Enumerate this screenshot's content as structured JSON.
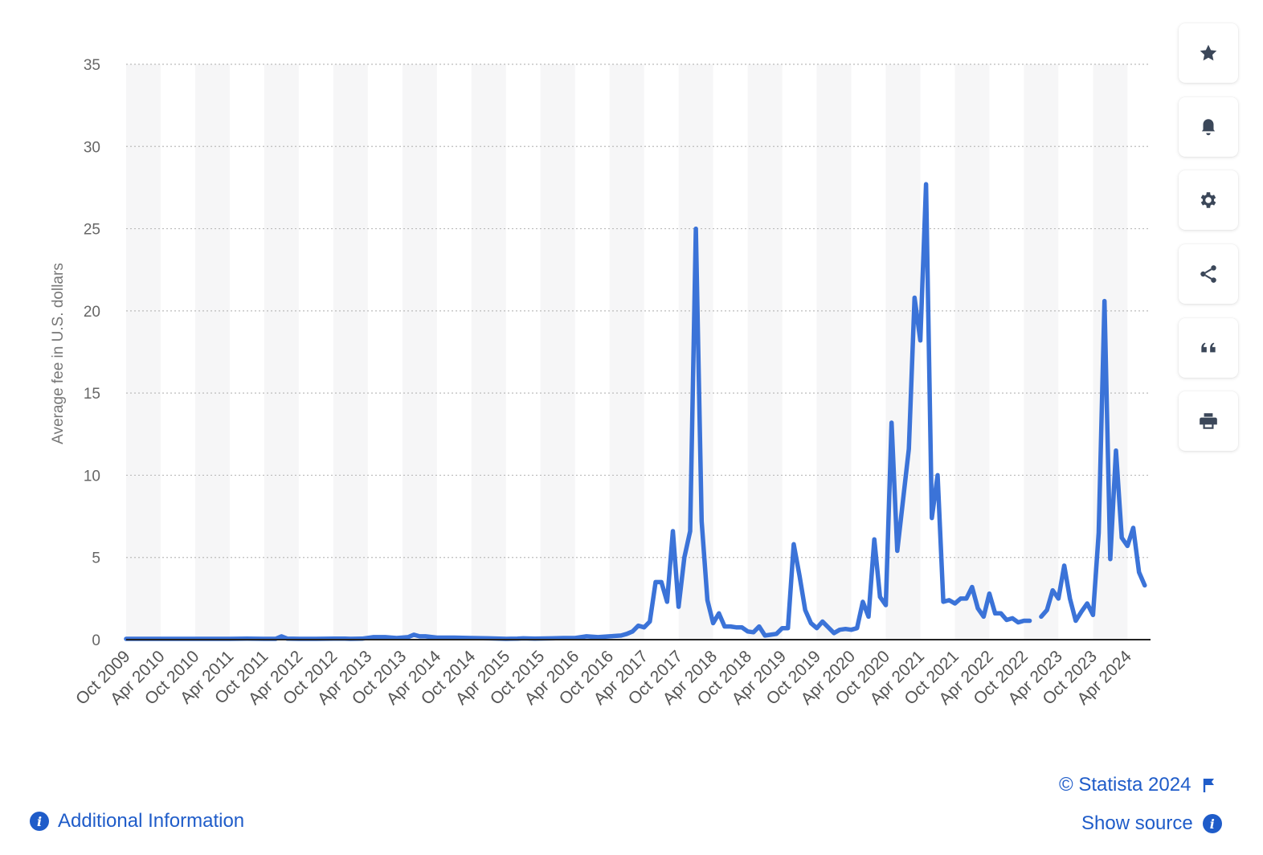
{
  "chart_data": {
    "type": "line",
    "ylabel": "Average fee in U.S. dollars",
    "ylim": [
      0,
      35
    ],
    "yticks": [
      0,
      5,
      10,
      15,
      20,
      25,
      30,
      35
    ],
    "xtick_labels": [
      "Oct 2009",
      "Apr 2010",
      "Oct 2010",
      "Apr 2011",
      "Oct 2011",
      "Apr 2012",
      "Oct 2012",
      "Apr 2013",
      "Oct 2013",
      "Apr 2014",
      "Oct 2014",
      "Apr 2015",
      "Oct 2015",
      "Apr 2016",
      "Oct 2016",
      "Apr 2017",
      "Oct 2017",
      "Apr 2018",
      "Oct 2018",
      "Apr 2019",
      "Oct 2019",
      "Apr 2020",
      "Oct 2020",
      "Apr 2021",
      "Oct 2021",
      "Apr 2022",
      "Oct 2022",
      "Apr 2023",
      "Oct 2023",
      "Apr 2024"
    ],
    "x_start": "2009-10",
    "x_end": "2024-08",
    "series": [
      {
        "color": "#3b73d8",
        "points": [
          [
            "2009-10",
            0.05
          ],
          [
            "2010-01",
            0.05
          ],
          [
            "2010-04",
            0.05
          ],
          [
            "2010-07",
            0.05
          ],
          [
            "2010-10",
            0.05
          ],
          [
            "2011-01",
            0.05
          ],
          [
            "2011-04",
            0.05
          ],
          [
            "2011-07",
            0.06
          ],
          [
            "2011-10",
            0.05
          ],
          [
            "2011-12",
            0.05
          ],
          [
            "2012-01",
            0.2
          ],
          [
            "2012-02",
            0.06
          ],
          [
            "2012-04",
            0.05
          ],
          [
            "2012-07",
            0.05
          ],
          [
            "2012-10",
            0.06
          ],
          [
            "2012-12",
            0.06
          ],
          [
            "2013-01",
            0.05
          ],
          [
            "2013-03",
            0.06
          ],
          [
            "2013-05",
            0.15
          ],
          [
            "2013-07",
            0.15
          ],
          [
            "2013-09",
            0.1
          ],
          [
            "2013-11",
            0.15
          ],
          [
            "2013-12",
            0.3
          ],
          [
            "2014-01",
            0.2
          ],
          [
            "2014-02",
            0.2
          ],
          [
            "2014-04",
            0.12
          ],
          [
            "2014-07",
            0.12
          ],
          [
            "2014-10",
            0.1
          ],
          [
            "2015-01",
            0.08
          ],
          [
            "2015-04",
            0.05
          ],
          [
            "2015-06",
            0.06
          ],
          [
            "2015-07",
            0.08
          ],
          [
            "2015-09",
            0.06
          ],
          [
            "2015-12",
            0.08
          ],
          [
            "2016-02",
            0.1
          ],
          [
            "2016-04",
            0.1
          ],
          [
            "2016-06",
            0.2
          ],
          [
            "2016-08",
            0.15
          ],
          [
            "2016-10",
            0.2
          ],
          [
            "2016-12",
            0.25
          ],
          [
            "2017-01",
            0.35
          ],
          [
            "2017-02",
            0.5
          ],
          [
            "2017-03",
            0.85
          ],
          [
            "2017-04",
            0.75
          ],
          [
            "2017-05",
            1.1
          ],
          [
            "2017-06",
            3.5
          ],
          [
            "2017-07",
            3.5
          ],
          [
            "2017-08",
            2.3
          ],
          [
            "2017-09",
            6.6
          ],
          [
            "2017-10",
            2.0
          ],
          [
            "2017-11",
            5.0
          ],
          [
            "2017-12",
            6.6
          ],
          [
            "2018-01",
            25.0
          ],
          [
            "2018-02",
            7.2
          ],
          [
            "2018-03",
            2.4
          ],
          [
            "2018-04",
            1.0
          ],
          [
            "2018-05",
            1.6
          ],
          [
            "2018-06",
            0.8
          ],
          [
            "2018-07",
            0.8
          ],
          [
            "2018-08",
            0.75
          ],
          [
            "2018-09",
            0.75
          ],
          [
            "2018-10",
            0.5
          ],
          [
            "2018-11",
            0.45
          ],
          [
            "2018-12",
            0.8
          ],
          [
            "2019-01",
            0.25
          ],
          [
            "2019-02",
            0.3
          ],
          [
            "2019-03",
            0.35
          ],
          [
            "2019-04",
            0.7
          ],
          [
            "2019-05",
            0.7
          ],
          [
            "2019-06",
            5.8
          ],
          [
            "2019-07",
            3.9
          ],
          [
            "2019-08",
            1.8
          ],
          [
            "2019-09",
            1.0
          ],
          [
            "2019-10",
            0.7
          ],
          [
            "2019-11",
            1.1
          ],
          [
            "2019-12",
            0.75
          ],
          [
            "2020-01",
            0.4
          ],
          [
            "2020-02",
            0.6
          ],
          [
            "2020-03",
            0.65
          ],
          [
            "2020-04",
            0.6
          ],
          [
            "2020-05",
            0.7
          ],
          [
            "2020-06",
            2.3
          ],
          [
            "2020-07",
            1.4
          ],
          [
            "2020-08",
            6.1
          ],
          [
            "2020-09",
            2.6
          ],
          [
            "2020-10",
            2.1
          ],
          [
            "2020-11",
            13.2
          ],
          [
            "2020-12",
            5.4
          ],
          [
            "2021-01",
            8.5
          ],
          [
            "2021-02",
            11.6
          ],
          [
            "2021-03",
            20.8
          ],
          [
            "2021-04",
            18.2
          ],
          [
            "2021-05",
            27.7
          ],
          [
            "2021-06",
            7.4
          ],
          [
            "2021-07",
            10.0
          ],
          [
            "2021-08",
            2.3
          ],
          [
            "2021-09",
            2.4
          ],
          [
            "2021-10",
            2.2
          ],
          [
            "2021-11",
            2.5
          ],
          [
            "2021-12",
            2.5
          ],
          [
            "2022-01",
            3.2
          ],
          [
            "2022-02",
            1.9
          ],
          [
            "2022-03",
            1.4
          ],
          [
            "2022-04",
            2.8
          ],
          [
            "2022-05",
            1.6
          ],
          [
            "2022-06",
            1.6
          ],
          [
            "2022-07",
            1.2
          ],
          [
            "2022-08",
            1.3
          ],
          [
            "2022-09",
            1.05
          ],
          [
            "2022-10",
            1.15
          ],
          [
            "2022-11",
            1.15
          ],
          null,
          [
            "2023-01",
            1.4
          ],
          [
            "2023-02",
            1.8
          ],
          [
            "2023-03",
            3.0
          ],
          [
            "2023-04",
            2.5
          ],
          [
            "2023-05",
            4.5
          ],
          [
            "2023-06",
            2.5
          ],
          [
            "2023-07",
            1.15
          ],
          [
            "2023-08",
            1.7
          ],
          [
            "2023-09",
            2.2
          ],
          [
            "2023-10",
            1.5
          ],
          [
            "2023-11",
            6.5
          ],
          [
            "2023-12",
            20.6
          ],
          [
            "2024-01",
            4.9
          ],
          [
            "2024-02",
            11.5
          ],
          [
            "2024-03",
            6.2
          ],
          [
            "2024-04",
            5.7
          ],
          [
            "2024-05",
            6.8
          ],
          [
            "2024-06",
            4.1
          ],
          [
            "2024-07",
            3.3
          ]
        ]
      }
    ]
  },
  "toolbar": {
    "buttons": [
      {
        "name": "star-button",
        "icon": "star-icon"
      },
      {
        "name": "notification-button",
        "icon": "bell-icon"
      },
      {
        "name": "settings-button",
        "icon": "gear-icon"
      },
      {
        "name": "share-button",
        "icon": "share-icon"
      },
      {
        "name": "cite-button",
        "icon": "quote-icon"
      },
      {
        "name": "print-button",
        "icon": "printer-icon"
      }
    ]
  },
  "footer": {
    "copyright": "© Statista 2024",
    "additional_info": "Additional Information",
    "show_source": "Show source"
  },
  "colors": {
    "line": "#3b73d8",
    "link": "#1f5cc9",
    "band": "#f6f6f7"
  }
}
